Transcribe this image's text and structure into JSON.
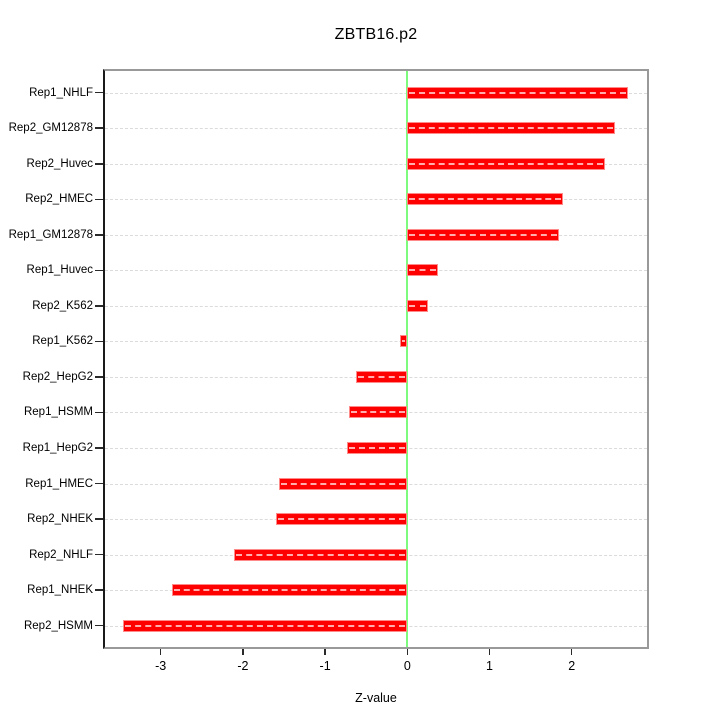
{
  "chart_data": {
    "type": "bar",
    "orientation": "horizontal",
    "title": "ZBTB16.p2",
    "xlabel": "Z-value",
    "ylabel": "",
    "categories": [
      "Rep1_NHLF",
      "Rep2_GM12878",
      "Rep2_Huvec",
      "Rep2_HMEC",
      "Rep1_GM12878",
      "Rep1_Huvec",
      "Rep2_K562",
      "Rep1_K562",
      "Rep2_HepG2",
      "Rep1_HSMM",
      "Rep1_HepG2",
      "Rep1_HMEC",
      "Rep2_NHEK",
      "Rep2_NHLF",
      "Rep1_NHEK",
      "Rep2_HSMM"
    ],
    "values": [
      2.69,
      2.53,
      2.41,
      1.9,
      1.85,
      0.37,
      0.25,
      -0.09,
      -0.62,
      -0.71,
      -0.73,
      -1.56,
      -1.6,
      -2.11,
      -2.86,
      -3.46
    ],
    "x_ticks": [
      -3,
      -2,
      -1,
      0,
      1,
      2
    ],
    "xlim": [
      -3.7,
      2.92
    ],
    "zero_reference_line": 0,
    "grid": "dashed horizontal per category, full width",
    "legend": "none",
    "colors": {
      "bar_fill": "#FE0000",
      "bar_border": "#FF8A8A",
      "bar_dash_overlay": "#FFFFFF",
      "zero_line": "#7DFB7D",
      "gridline": "#DBDBDB",
      "box_border": "#999999",
      "axis_left": "#1A1A1A",
      "tick": "#2A2A2A",
      "text": "#000000",
      "background": "#FFFFFF"
    }
  }
}
